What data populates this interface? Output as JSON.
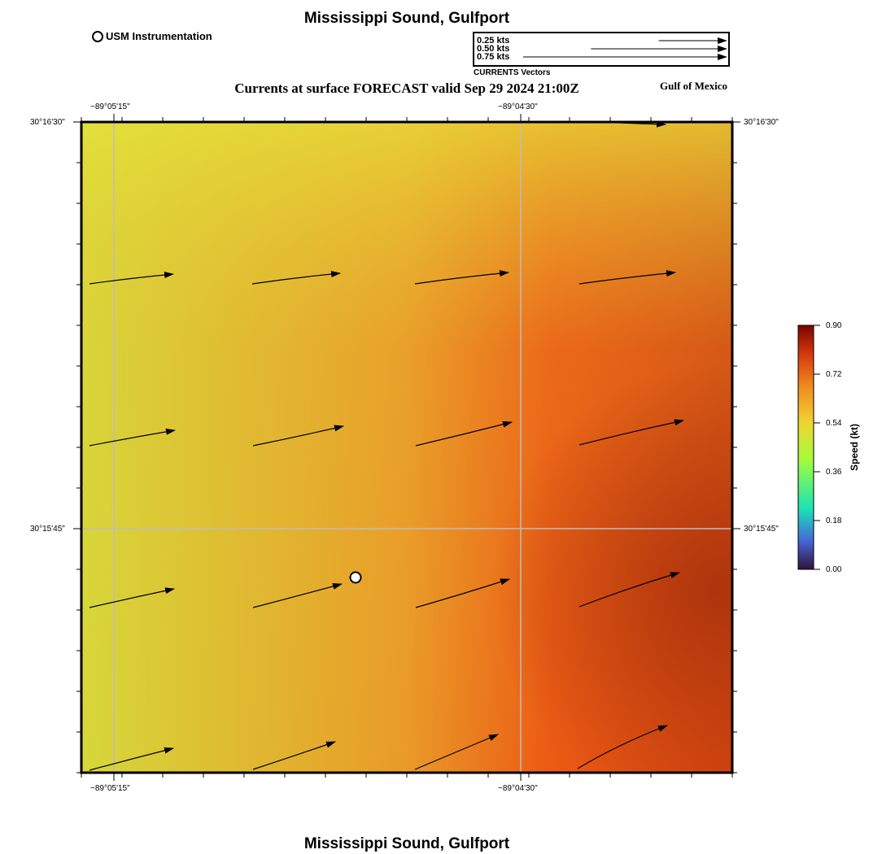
{
  "title_top": "Mississippi Sound, Gulfport",
  "title_bottom": "Mississippi Sound, Gulfport",
  "subtitle": "Currents at surface FORECAST valid Sep 29 2024 21:00Z",
  "region_label": "Gulf of Mexico",
  "instrument_legend": {
    "label": "USM Instrumentation",
    "icon": "open-circle"
  },
  "vector_legend": {
    "entries": [
      {
        "label": "0.25 kts",
        "speed": 0.25
      },
      {
        "label": "0.50 kts",
        "speed": 0.5
      },
      {
        "label": "0.75 kts",
        "speed": 0.75
      }
    ],
    "caption": "CURRENTS Vectors"
  },
  "axes": {
    "lon_labels": [
      "−89°05'15\"",
      "−89°04'30\""
    ],
    "lat_labels": [
      "30°16'30\"",
      "30°15'45\""
    ]
  },
  "colorbar": {
    "title": "Speed (kt)",
    "ticks": [
      "0.90",
      "0.72",
      "0.54",
      "0.36",
      "0.18",
      "0.00"
    ],
    "colors": [
      "#7a0403",
      "#e4460a",
      "#f0b832",
      "#a4fc3c",
      "#2fb2e0",
      "#30123b"
    ]
  },
  "field_colors": {
    "low": "#d6e03a",
    "mid": "#e99a28",
    "high": "#b8350c"
  },
  "vector_color": "#000000"
}
